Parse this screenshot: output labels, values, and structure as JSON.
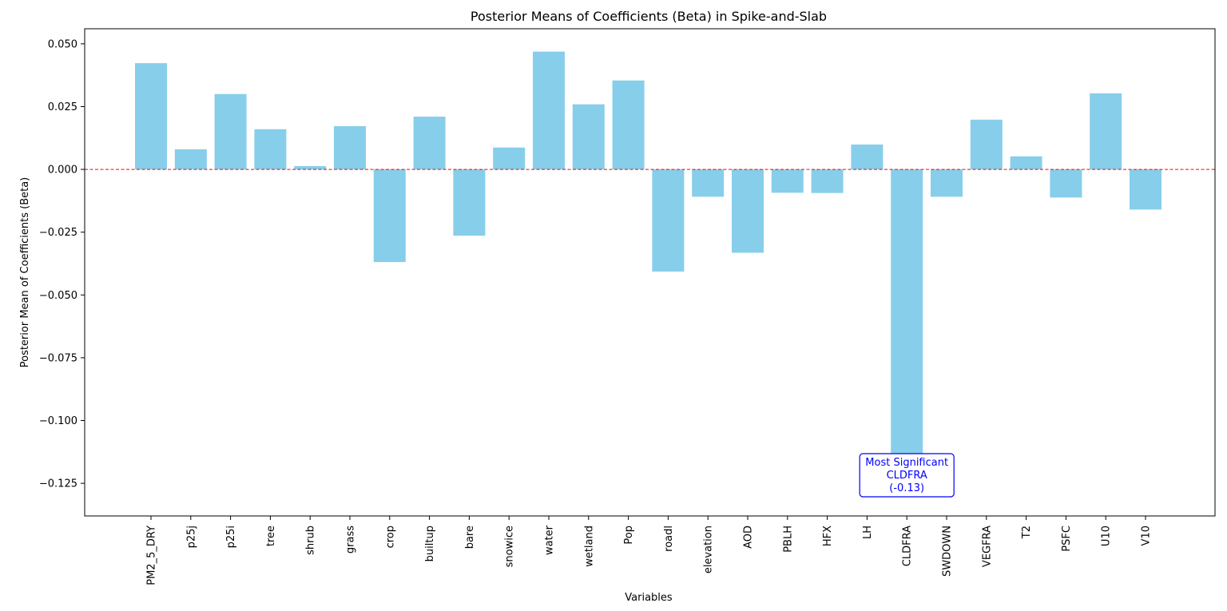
{
  "chart_data": {
    "type": "bar",
    "title": "Posterior Means of Coefficients (Beta) in Spike-and-Slab",
    "xlabel": "Variables",
    "ylabel": "Posterior Mean of Coefficients (Beta)",
    "ylim": [
      -0.138,
      0.056
    ],
    "y_ticks": [
      0.05,
      0.025,
      0.0,
      -0.025,
      -0.05,
      -0.075,
      -0.1,
      -0.125
    ],
    "y_tick_labels": [
      "0.050",
      "0.025",
      "0.000",
      "−0.025",
      "−0.050",
      "−0.075",
      "−0.100",
      "−0.125"
    ],
    "grid": false,
    "categories": [
      "PM2_5_DRY",
      "p25j",
      "p25i",
      "tree",
      "shrub",
      "grass",
      "crop",
      "builtup",
      "bare",
      "snowice",
      "water",
      "wetland",
      "Pop",
      "roadl",
      "elevation",
      "AOD",
      "PBLH",
      "HFX",
      "LH",
      "CLDFRA",
      "SWDOWN",
      "VEGFRA",
      "T2",
      "PSFC",
      "U10",
      "V10"
    ],
    "values": [
      0.0423,
      0.008,
      0.03,
      0.016,
      0.0013,
      0.0172,
      -0.0369,
      0.021,
      -0.0264,
      0.0087,
      0.0469,
      0.0259,
      0.0354,
      -0.0407,
      -0.0109,
      -0.0332,
      -0.0093,
      -0.0094,
      0.0099,
      -0.13,
      -0.0109,
      0.0198,
      0.0052,
      -0.0112,
      0.0303,
      -0.016
    ],
    "bar_color": "#87ceeb",
    "reference_line": {
      "y": 0,
      "color": "#ff0000",
      "style": "dashed"
    },
    "annotation": {
      "lines": [
        "Most Significant",
        "CLDFRA",
        "(-0.13)"
      ],
      "category": "CLDFRA",
      "color": "#0000ff"
    }
  }
}
